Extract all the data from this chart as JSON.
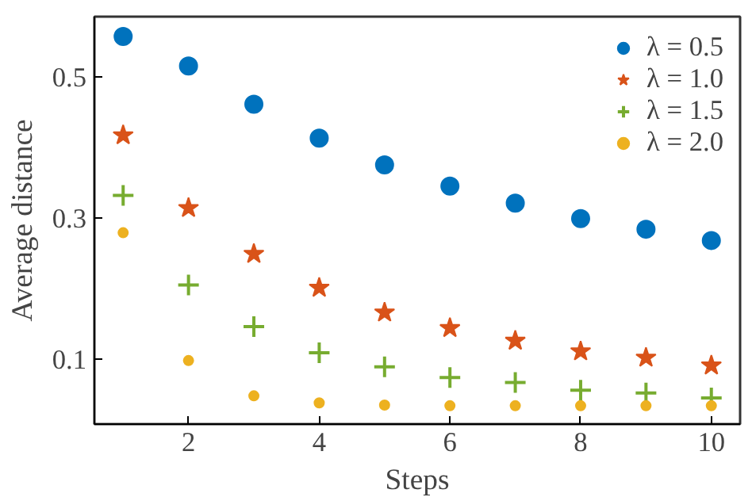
{
  "chart_data": {
    "type": "scatter",
    "xlabel": "Steps",
    "ylabel": "Average distance",
    "x": [
      1,
      2,
      3,
      4,
      5,
      6,
      7,
      8,
      9,
      10
    ],
    "xlim": [
      0.56,
      10.44
    ],
    "ylim": [
      0.008,
      0.585
    ],
    "xticks": [
      2,
      4,
      6,
      8,
      10
    ],
    "yticks": [
      0.1,
      0.3,
      0.5
    ],
    "grid": false,
    "legend": "top right",
    "series": [
      {
        "name": "λ = 0.5",
        "color": "#0072bd",
        "marker": "circle",
        "values": [
          0.557,
          0.515,
          0.461,
          0.413,
          0.375,
          0.345,
          0.321,
          0.299,
          0.284,
          0.268
        ]
      },
      {
        "name": "λ = 1.0",
        "color": "#d95319",
        "marker": "star",
        "values": [
          0.417,
          0.314,
          0.249,
          0.201,
          0.166,
          0.144,
          0.126,
          0.111,
          0.102,
          0.091
        ]
      },
      {
        "name": "λ = 1.5",
        "color": "#77ac30",
        "marker": "cross",
        "values": [
          0.332,
          0.205,
          0.146,
          0.109,
          0.089,
          0.074,
          0.067,
          0.056,
          0.052,
          0.045
        ]
      },
      {
        "name": "λ = 2.0",
        "color": "#edb120",
        "marker": "circle",
        "values": [
          0.279,
          0.098,
          0.048,
          0.038,
          0.035,
          0.034,
          0.034,
          0.034,
          0.034,
          0.034
        ]
      }
    ]
  }
}
